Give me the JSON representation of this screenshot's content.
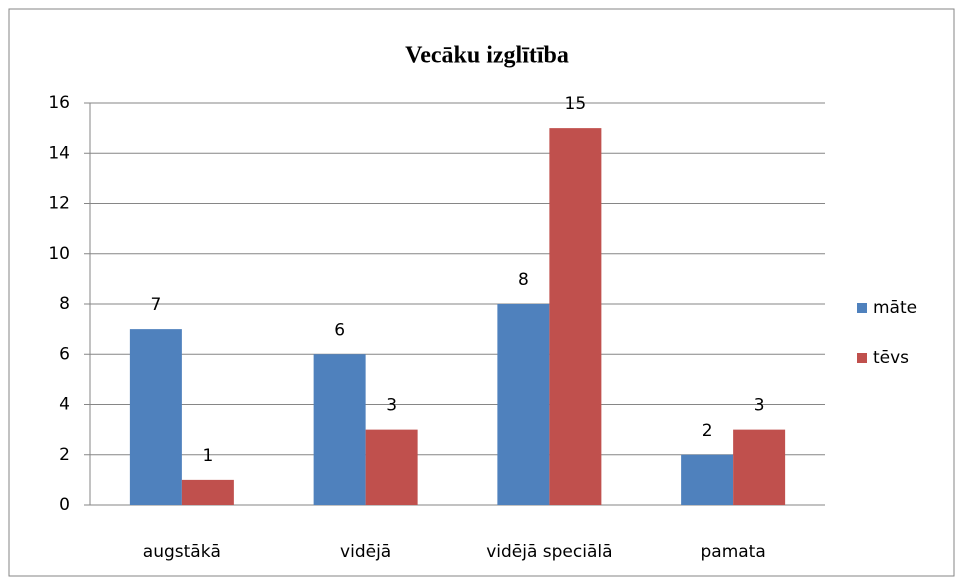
{
  "chart_data": {
    "type": "bar",
    "title": "Vecāku izglītība",
    "categories": [
      "augstākā",
      "vidējā",
      "vidējā speciālā",
      "pamata"
    ],
    "series": [
      {
        "name": "māte",
        "color": "#4f81bd",
        "values": [
          7,
          6,
          8,
          2
        ]
      },
      {
        "name": "tēvs",
        "color": "#c0504d",
        "values": [
          1,
          3,
          15,
          3
        ]
      }
    ],
    "ylim": [
      0,
      16
    ],
    "yticks": [
      0,
      2,
      4,
      6,
      8,
      10,
      12,
      14,
      16
    ],
    "grid": true,
    "legend": "right"
  }
}
